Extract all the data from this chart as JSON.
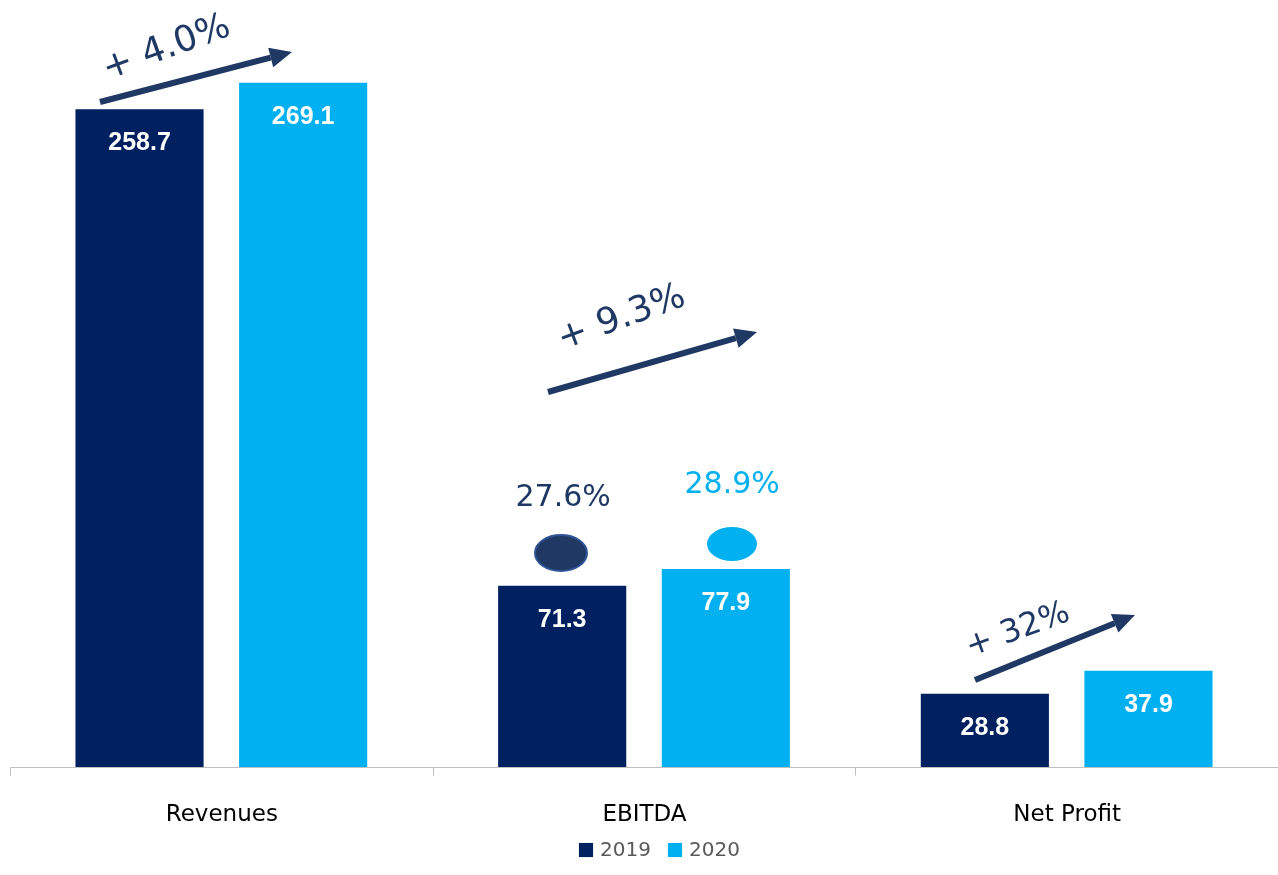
{
  "chart_data": {
    "type": "bar",
    "categories": [
      "Revenues",
      "EBITDA",
      "Net Profit"
    ],
    "series": [
      {
        "name": "2019",
        "color": "#002060",
        "values": [
          258.7,
          71.3,
          28.8
        ]
      },
      {
        "name": "2020",
        "color": "#00b0f0",
        "values": [
          269.1,
          77.9,
          37.9
        ]
      }
    ],
    "data_labels": true,
    "legend": "bottom",
    "grid": false,
    "annotations": [
      "+ 4.0%",
      "+ 9.3%",
      "+ 32%",
      "27.6%",
      "28.9%"
    ]
  }
}
